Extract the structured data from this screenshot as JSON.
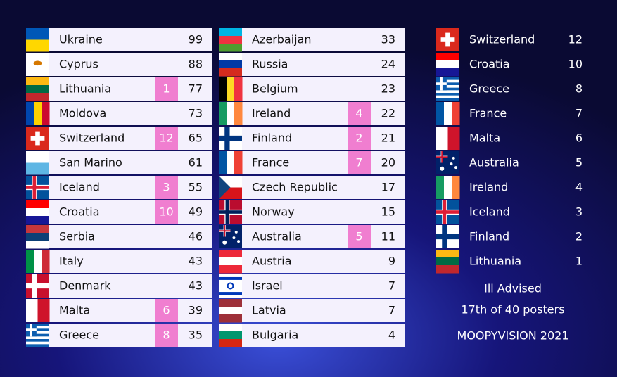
{
  "scoreboard": {
    "columns": [
      {
        "rows": [
          {
            "country": "Ukraine",
            "points": null,
            "total": 99
          },
          {
            "country": "Cyprus",
            "points": null,
            "total": 88
          },
          {
            "country": "Lithuania",
            "points": 1,
            "total": 77
          },
          {
            "country": "Moldova",
            "points": null,
            "total": 73
          },
          {
            "country": "Switzerland",
            "points": 12,
            "total": 65
          },
          {
            "country": "San Marino",
            "points": null,
            "total": 61
          },
          {
            "country": "Iceland",
            "points": 3,
            "total": 55
          },
          {
            "country": "Croatia",
            "points": 10,
            "total": 49
          },
          {
            "country": "Serbia",
            "points": null,
            "total": 46
          },
          {
            "country": "Italy",
            "points": null,
            "total": 43
          },
          {
            "country": "Denmark",
            "points": null,
            "total": 43
          },
          {
            "country": "Malta",
            "points": 6,
            "total": 39
          },
          {
            "country": "Greece",
            "points": 8,
            "total": 35
          }
        ]
      },
      {
        "rows": [
          {
            "country": "Azerbaijan",
            "points": null,
            "total": 33
          },
          {
            "country": "Russia",
            "points": null,
            "total": 24
          },
          {
            "country": "Belgium",
            "points": null,
            "total": 23
          },
          {
            "country": "Ireland",
            "points": 4,
            "total": 22
          },
          {
            "country": "Finland",
            "points": 2,
            "total": 21
          },
          {
            "country": "France",
            "points": 7,
            "total": 20
          },
          {
            "country": "Czech Republic",
            "points": null,
            "total": 17
          },
          {
            "country": "Norway",
            "points": null,
            "total": 15
          },
          {
            "country": "Australia",
            "points": 5,
            "total": 11
          },
          {
            "country": "Austria",
            "points": null,
            "total": 9
          },
          {
            "country": "Israel",
            "points": null,
            "total": 7
          },
          {
            "country": "Latvia",
            "points": null,
            "total": 7
          },
          {
            "country": "Bulgaria",
            "points": null,
            "total": 4
          }
        ]
      }
    ]
  },
  "votes": {
    "rows": [
      {
        "country": "Switzerland",
        "points": 12
      },
      {
        "country": "Croatia",
        "points": 10
      },
      {
        "country": "Greece",
        "points": 8
      },
      {
        "country": "France",
        "points": 7
      },
      {
        "country": "Malta",
        "points": 6
      },
      {
        "country": "Australia",
        "points": 5
      },
      {
        "country": "Ireland",
        "points": 4
      },
      {
        "country": "Iceland",
        "points": 3
      },
      {
        "country": "Finland",
        "points": 2
      },
      {
        "country": "Lithuania",
        "points": 1
      }
    ]
  },
  "footer": {
    "entry": "Ill Advised",
    "rank": "17th of 40 posters",
    "brand": "MOOPYVISION 2021"
  }
}
